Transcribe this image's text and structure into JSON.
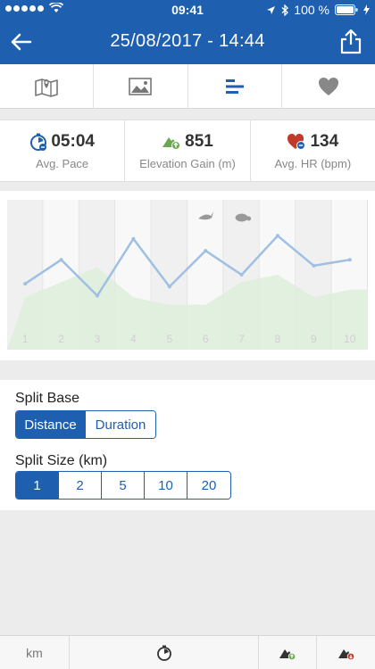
{
  "status_bar": {
    "time": "09:41",
    "battery": "100 %"
  },
  "navbar": {
    "title": "25/08/2017 - 14:44"
  },
  "tabs": [
    {
      "name": "map-icon"
    },
    {
      "name": "photo-icon"
    },
    {
      "name": "splits-icon",
      "active": true
    },
    {
      "name": "heart-icon"
    }
  ],
  "stats": {
    "pace": {
      "value": "05:04",
      "label": "Avg. Pace"
    },
    "elevation": {
      "value": "851",
      "label": "Elevation Gain (m)"
    },
    "hr": {
      "value": "134",
      "label": "Avg. HR (bpm)"
    }
  },
  "split_base": {
    "label": "Split Base",
    "options": [
      "Distance",
      "Duration"
    ],
    "selected": "Distance"
  },
  "split_size": {
    "label": "Split Size (km)",
    "options": [
      "1",
      "2",
      "5",
      "10",
      "20"
    ],
    "selected": "1"
  },
  "bottom_bar": {
    "unit": "km"
  },
  "colors": {
    "primary": "#1f5fb0",
    "line": "#9fc0e2",
    "area": "#dfeedd",
    "column_a": "#f0f0f0",
    "column_b": "#f8f8f8"
  },
  "chart_data": {
    "type": "line",
    "categories": [
      "1",
      "2",
      "3",
      "4",
      "5",
      "6",
      "7",
      "8",
      "9",
      "10"
    ],
    "series": [
      {
        "values": [
          5.2,
          4.4,
          5.6,
          3.7,
          5.3,
          4.1,
          4.9,
          3.6,
          4.6,
          4.4
        ]
      },
      {
        "values": [
          0.35,
          0.45,
          0.55,
          0.35,
          0.3,
          0.3,
          0.45,
          0.5,
          0.35,
          0.4
        ]
      }
    ],
    "annotations": [
      "fastest-split-hare",
      "slowest-split-tortoise"
    ],
    "grid": true
  }
}
